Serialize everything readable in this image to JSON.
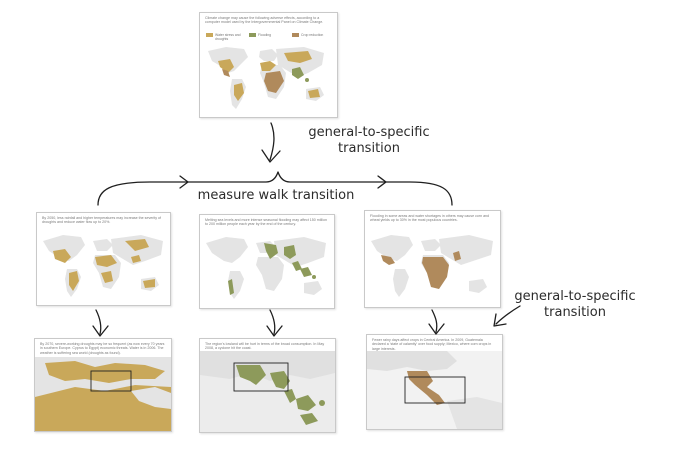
{
  "labels": {
    "top_transition_line1": "general-to-specific",
    "top_transition_line2": "transition",
    "measure_walk": "measure walk transition",
    "right_transition_line1": "general-to-specific",
    "right_transition_line2": "transition"
  },
  "top_panel": {
    "caption": "Climate change may cause the following adverse effects, according to a computer model used by the Intergovernmental Panel on Climate Change.",
    "legend": [
      {
        "label": "Water stress and droughts",
        "color": "#c9a85a"
      },
      {
        "label": "Flooding",
        "color": "#8d9a5b"
      },
      {
        "label": "Crop reduction",
        "color": "#b08a5c"
      }
    ]
  },
  "middle_panels": [
    {
      "caption": "By 2050, less rainfall and higher temperatures may increase the severity of droughts and reduce water flow up to 20%."
    },
    {
      "caption": "Melting sea levels and more intense seasonal flooding may affect 150 million to 200 million people each year by the end of the century."
    },
    {
      "caption": "Flooding in some areas and water shortages in others may cause corn and wheat yields up to 30% in the most populous countries."
    }
  ],
  "bottom_panels": [
    {
      "caption": "By 2070, severe-working droughts may be so frequent (as now every 70 years in southern Europe. Cyprus to Egypt) economic threats. Water is in 2006. The weather is suffering sea world (droughts as found)."
    },
    {
      "caption": "The region's lowland will be hurt in terms of the broad consumption. In May 2008, a cyclone hit the coast."
    },
    {
      "caption": "Fewer rainy days affect crops in Central America. In 2009, Guatemala declared a 'state of calamity' over food supply; Mexico, where corn crops in large interests."
    }
  ],
  "colors": {
    "land": "#e4e4e4",
    "drought": "#c9a85a",
    "flooding": "#8d9a5b",
    "crop": "#b08a5c",
    "arrow": "#1f1f1f"
  }
}
